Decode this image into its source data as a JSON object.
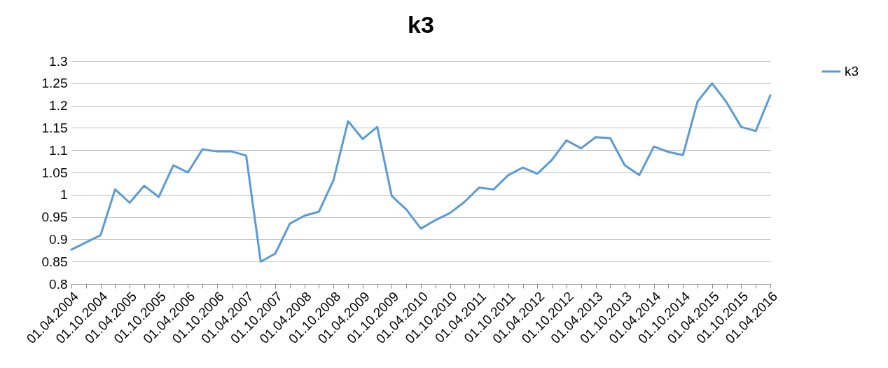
{
  "chart_data": {
    "type": "line",
    "title": "k3",
    "categories": [
      "01.04.2004",
      null,
      "01.10.2004",
      null,
      "01.04.2005",
      null,
      "01.10.2005",
      null,
      "01.04.2006",
      null,
      "01.10.2006",
      null,
      "01.04.2007",
      null,
      "01.10.2007",
      null,
      "01.04.2008",
      null,
      "01.10.2008",
      null,
      "01.04.2009",
      null,
      "01.10.2009",
      null,
      "01.04.2010",
      null,
      "01.10.2010",
      null,
      "01.04.2011",
      null,
      "01.10.2011",
      null,
      "01.04.2012",
      null,
      "01.10.2012",
      null,
      "01.04.2013",
      null,
      "01.10.2013",
      null,
      "01.04.2014",
      null,
      "01.10.2014",
      null,
      "01.04.2015",
      null,
      "01.10.2015",
      null,
      "01.04.2016"
    ],
    "series": [
      {
        "name": "k3",
        "color": "#5b9bd5",
        "values": [
          0.877,
          0.893,
          0.909,
          1.012,
          0.982,
          1.02,
          0.995,
          1.066,
          1.05,
          1.102,
          1.097,
          1.097,
          1.088,
          0.85,
          0.868,
          0.935,
          0.953,
          0.962,
          1.033,
          1.165,
          1.125,
          1.152,
          0.997,
          0.967,
          0.924,
          0.943,
          0.959,
          0.984,
          1.016,
          1.012,
          1.044,
          1.061,
          1.047,
          1.078,
          1.122,
          1.104,
          1.129,
          1.127,
          1.066,
          1.044,
          1.108,
          1.096,
          1.089,
          1.209,
          1.25,
          1.207,
          1.152,
          1.143,
          1.223
        ]
      }
    ],
    "ylim": [
      0.8,
      1.3
    ],
    "yticks": [
      0.8,
      0.85,
      0.9,
      0.95,
      1,
      1.05,
      1.1,
      1.15,
      1.2,
      1.25,
      1.3
    ],
    "grid": "y",
    "legend": "right",
    "marker": "none",
    "line_style": "solid"
  }
}
